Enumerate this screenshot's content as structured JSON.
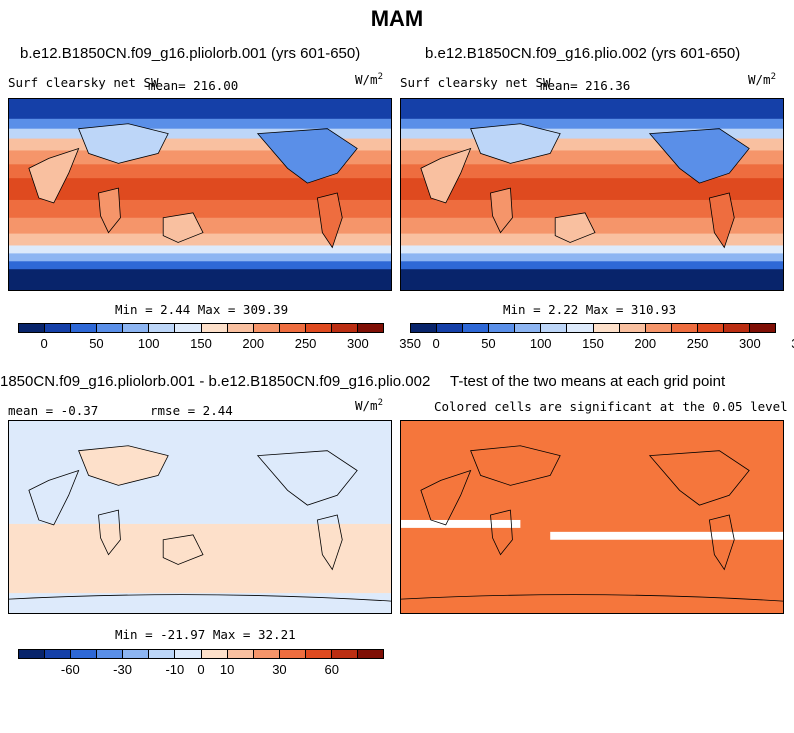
{
  "title": "MAM",
  "panels": [
    {
      "title": "b.e12.B1850CN.f09_g16.pliolorb.001 (yrs 601-650)",
      "left": "Surf clearsky net SW",
      "mean": "mean= 216.00",
      "units": "W/m",
      "units_sup": "2",
      "minmax": "Min =    2.44 Max = 309.39"
    },
    {
      "title": "b.e12.B1850CN.f09_g16.plio.002 (yrs 601-650)",
      "left": "Surf clearsky net SW",
      "mean": "mean= 216.36",
      "units": "W/m",
      "units_sup": "2",
      "minmax": "Min =    2.22 Max = 310.93"
    },
    {
      "title": "1850CN.f09_g16.pliolorb.001 - b.e12.B1850CN.f09_g16.plio.002",
      "left": "mean =   -0.37",
      "mean": "rmse =    2.44",
      "units": "W/m",
      "units_sup": "2",
      "minmax": "Min = -21.97 Max =  32.21"
    },
    {
      "title": "T-test of the two means at each grid point",
      "left": "Colored cells are significant at the 0.05 level"
    }
  ],
  "colorbar_abs": {
    "colors": [
      "#08246b",
      "#1540a8",
      "#2e68d6",
      "#5a8fe8",
      "#8db5f2",
      "#bdd6f8",
      "#ddeafb",
      "#fde0ca",
      "#f9c0a0",
      "#f5956a",
      "#ee6d3f",
      "#df4a1f",
      "#bb2e12",
      "#7f0f05"
    ],
    "ticks": [
      "0",
      "50",
      "100",
      "150",
      "200",
      "250",
      "300",
      "350"
    ]
  },
  "colorbar_diff": {
    "colors": [
      "#08246b",
      "#1540a8",
      "#2e68d6",
      "#5a8fe8",
      "#8db5f2",
      "#bdd6f8",
      "#ddeafb",
      "#fde0ca",
      "#f9c0a0",
      "#f5956a",
      "#ee6d3f",
      "#df4a1f",
      "#bb2e12",
      "#7f0f05"
    ],
    "ticks": [
      "-60",
      "-30",
      "-10",
      "0",
      "10",
      "30",
      "60"
    ]
  }
}
